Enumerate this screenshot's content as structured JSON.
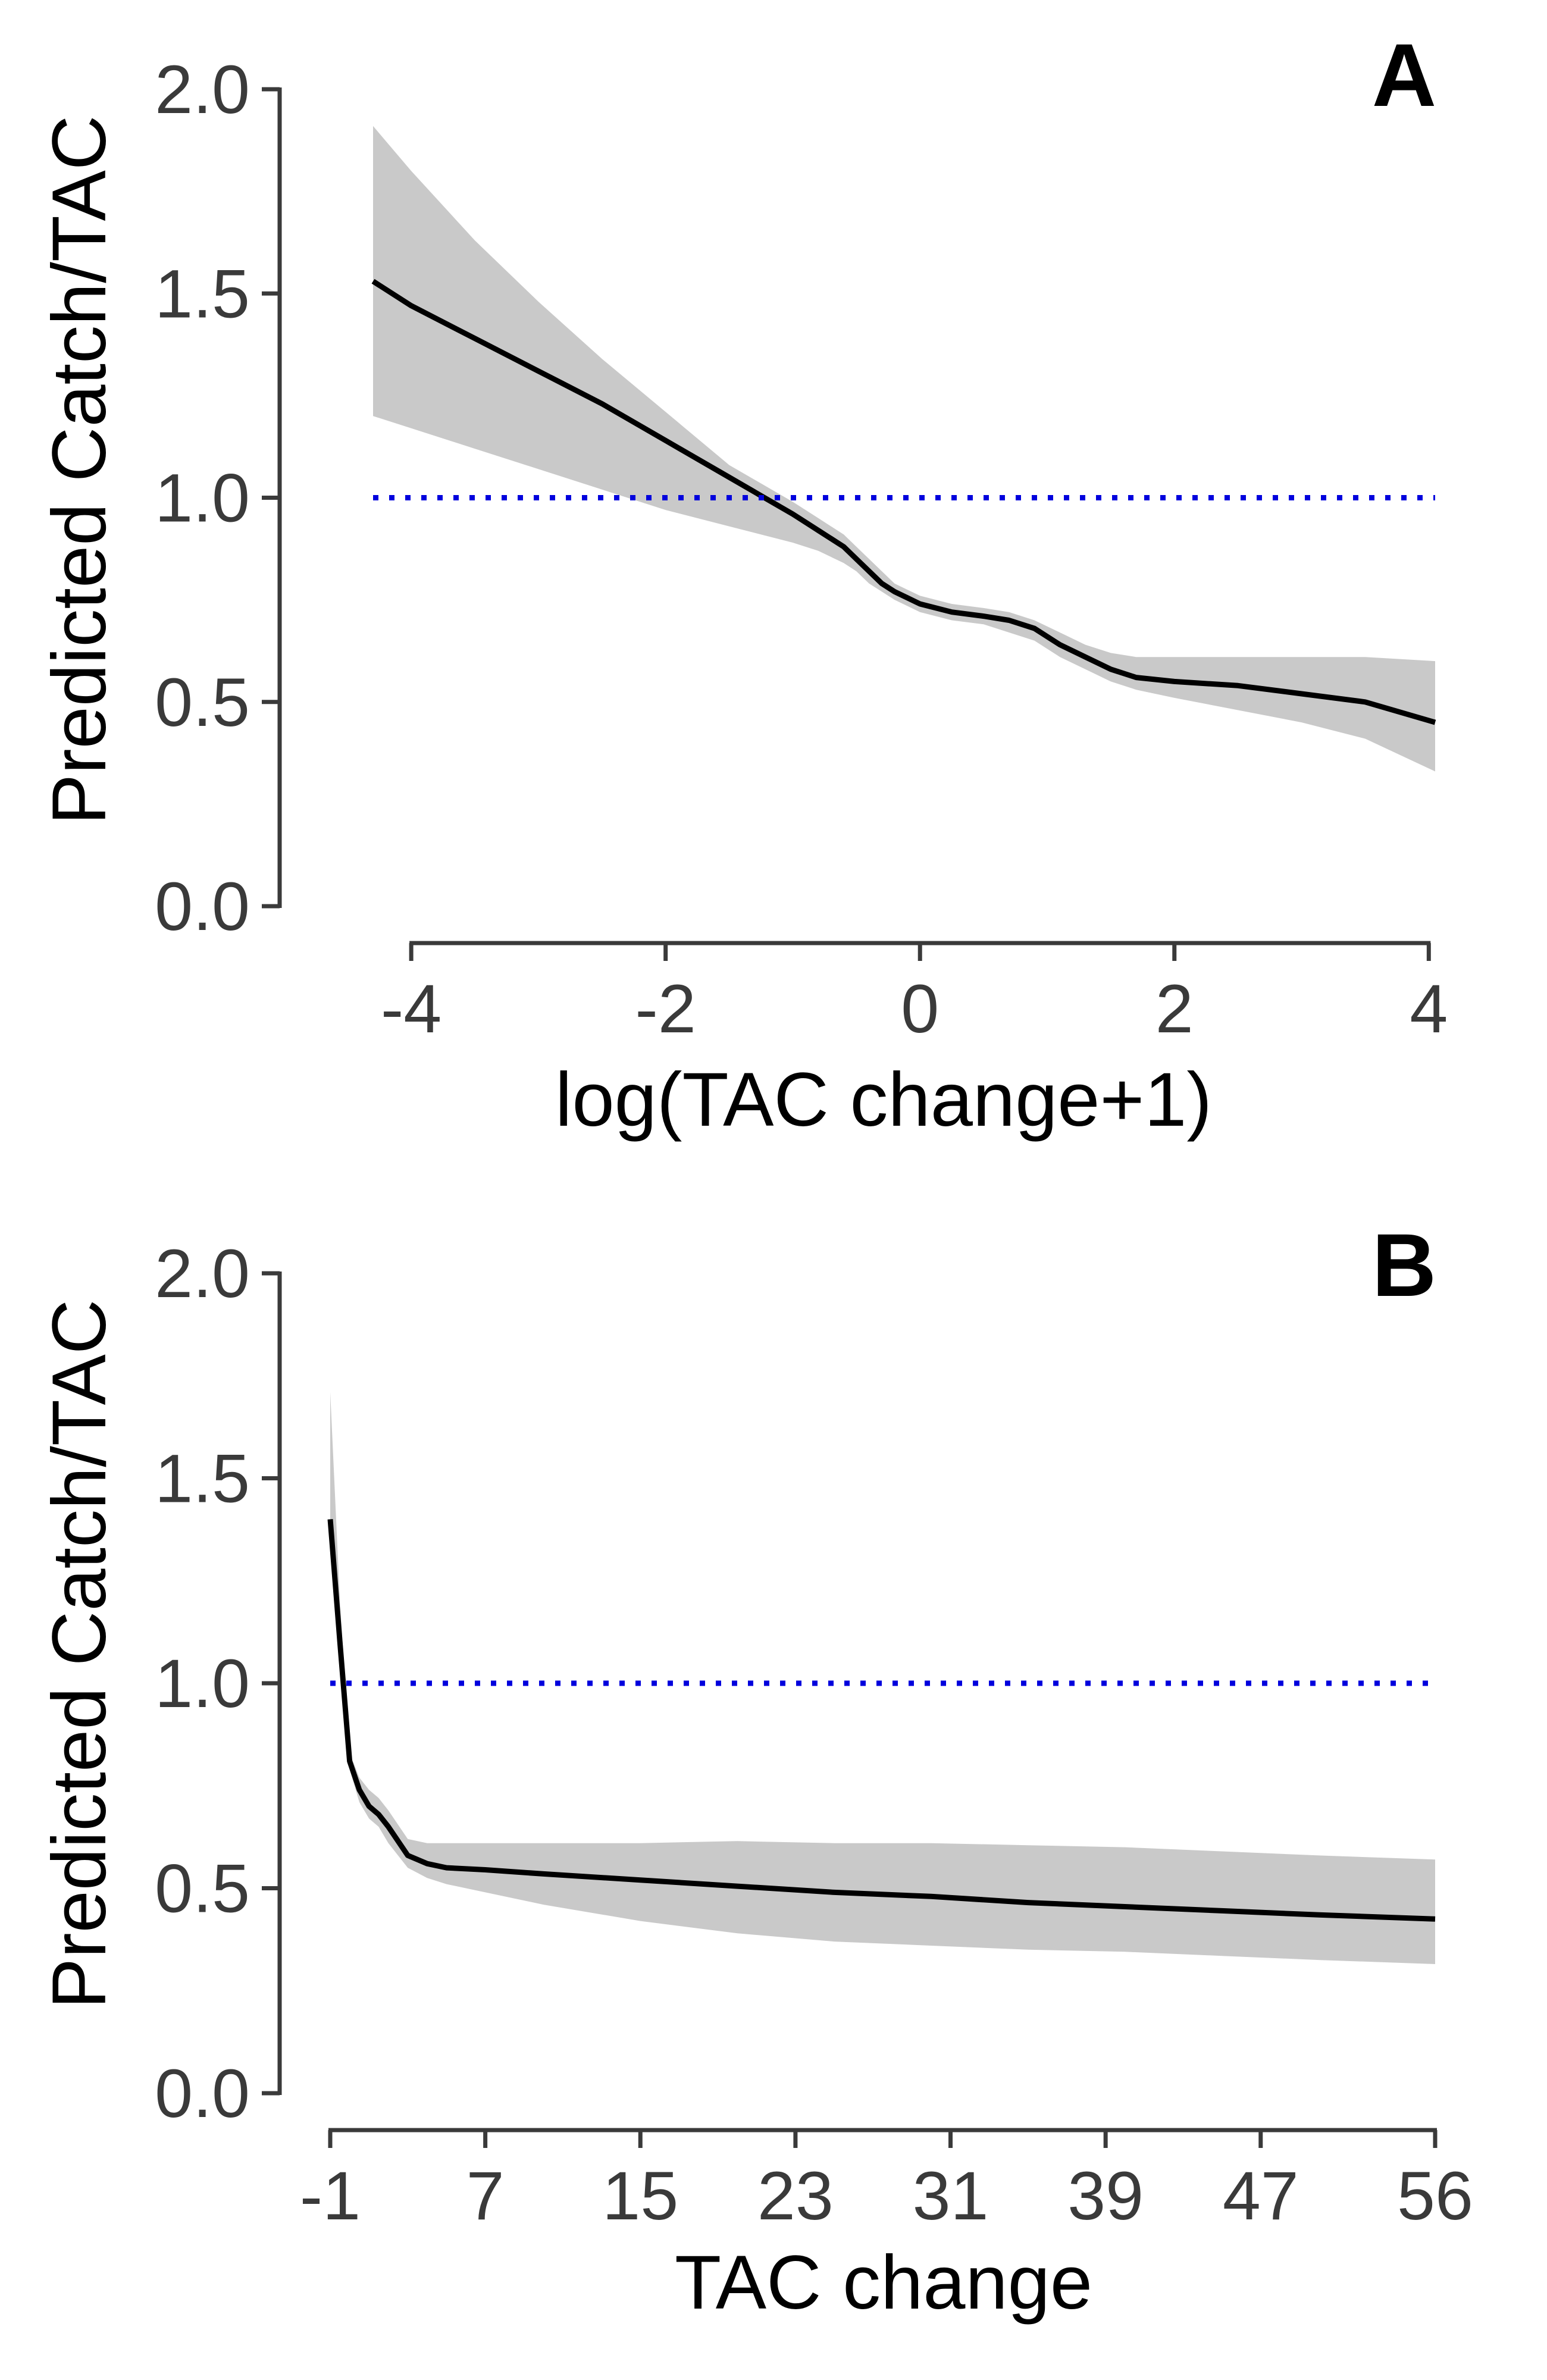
{
  "colors": {
    "line": "#000000",
    "ribbon": "#c9c9c9",
    "reference": "#0000dd",
    "axis": "#3a3a3a"
  },
  "chart_data": [
    {
      "type": "line",
      "panel_label": "A",
      "xlabel": "log(TAC change+1)",
      "ylabel": "Predicted Catch/TAC",
      "xlim": [
        -4.3,
        4.05
      ],
      "ylim": [
        0.0,
        2.0
      ],
      "x_ticks": [
        -4,
        -2,
        0,
        2,
        4
      ],
      "x_tick_labels": [
        "-4",
        "-2",
        "0",
        "2",
        "4"
      ],
      "y_ticks": [
        0.0,
        0.5,
        1.0,
        1.5,
        2.0
      ],
      "y_tick_labels": [
        "0.0",
        "0.5",
        "1.0",
        "1.5",
        "2.0"
      ],
      "reference_line": {
        "y": 1.0,
        "style": "dotted"
      },
      "grid": false,
      "series": [
        {
          "x": [
            -4.3,
            -4.0,
            -3.5,
            -3.0,
            -2.5,
            -2.0,
            -1.5,
            -1.0,
            -0.8,
            -0.6,
            -0.5,
            -0.4,
            -0.3,
            -0.2,
            0.0,
            0.25,
            0.5,
            0.7,
            0.9,
            1.1,
            1.3,
            1.5,
            1.7,
            2.0,
            2.5,
            3.0,
            3.5,
            4.05
          ],
          "y": [
            1.53,
            1.47,
            1.39,
            1.31,
            1.23,
            1.14,
            1.05,
            0.96,
            0.92,
            0.88,
            0.85,
            0.82,
            0.79,
            0.77,
            0.74,
            0.72,
            0.71,
            0.7,
            0.68,
            0.64,
            0.61,
            0.58,
            0.56,
            0.55,
            0.54,
            0.52,
            0.5,
            0.45
          ],
          "lower": [
            1.2,
            1.17,
            1.12,
            1.07,
            1.02,
            0.97,
            0.93,
            0.89,
            0.87,
            0.84,
            0.82,
            0.79,
            0.77,
            0.75,
            0.72,
            0.7,
            0.69,
            0.67,
            0.65,
            0.61,
            0.58,
            0.55,
            0.53,
            0.51,
            0.48,
            0.45,
            0.41,
            0.33
          ],
          "upper": [
            1.91,
            1.8,
            1.63,
            1.48,
            1.34,
            1.21,
            1.08,
            0.99,
            0.95,
            0.91,
            0.88,
            0.85,
            0.82,
            0.79,
            0.76,
            0.74,
            0.73,
            0.72,
            0.7,
            0.67,
            0.64,
            0.62,
            0.61,
            0.61,
            0.61,
            0.61,
            0.61,
            0.6
          ]
        }
      ]
    },
    {
      "type": "line",
      "panel_label": "B",
      "xlabel": "TAC change",
      "ylabel": "Predicted Catch/TAC",
      "xlim": [
        -1,
        56
      ],
      "ylim": [
        0.0,
        2.0
      ],
      "x_ticks": [
        -1,
        7,
        15,
        23,
        31,
        39,
        47,
        56
      ],
      "x_tick_labels": [
        "-1",
        "7",
        "15",
        "23",
        "31",
        "39",
        "47",
        "56"
      ],
      "y_ticks": [
        0.0,
        0.5,
        1.0,
        1.5,
        2.0
      ],
      "y_tick_labels": [
        "0.0",
        "0.5",
        "1.0",
        "1.5",
        "2.0"
      ],
      "reference_line": {
        "y": 1.0,
        "style": "dotted"
      },
      "grid": false,
      "series": [
        {
          "x": [
            -1,
            -0.5,
            0,
            0.5,
            1,
            1.5,
            2,
            3,
            4,
            5,
            7,
            10,
            15,
            20,
            25,
            30,
            35,
            40,
            45,
            50,
            56
          ],
          "y": [
            1.4,
            1.1,
            0.81,
            0.74,
            0.7,
            0.68,
            0.65,
            0.58,
            0.56,
            0.55,
            0.545,
            0.535,
            0.52,
            0.505,
            0.49,
            0.48,
            0.465,
            0.455,
            0.445,
            0.435,
            0.425
          ],
          "lower": [
            1.32,
            1.05,
            0.79,
            0.71,
            0.67,
            0.65,
            0.61,
            0.55,
            0.525,
            0.51,
            0.49,
            0.46,
            0.42,
            0.39,
            0.37,
            0.36,
            0.35,
            0.345,
            0.335,
            0.325,
            0.315
          ],
          "upper": [
            1.71,
            1.2,
            0.83,
            0.77,
            0.74,
            0.72,
            0.69,
            0.62,
            0.61,
            0.61,
            0.61,
            0.61,
            0.61,
            0.615,
            0.61,
            0.61,
            0.605,
            0.6,
            0.59,
            0.58,
            0.57
          ]
        }
      ]
    }
  ]
}
